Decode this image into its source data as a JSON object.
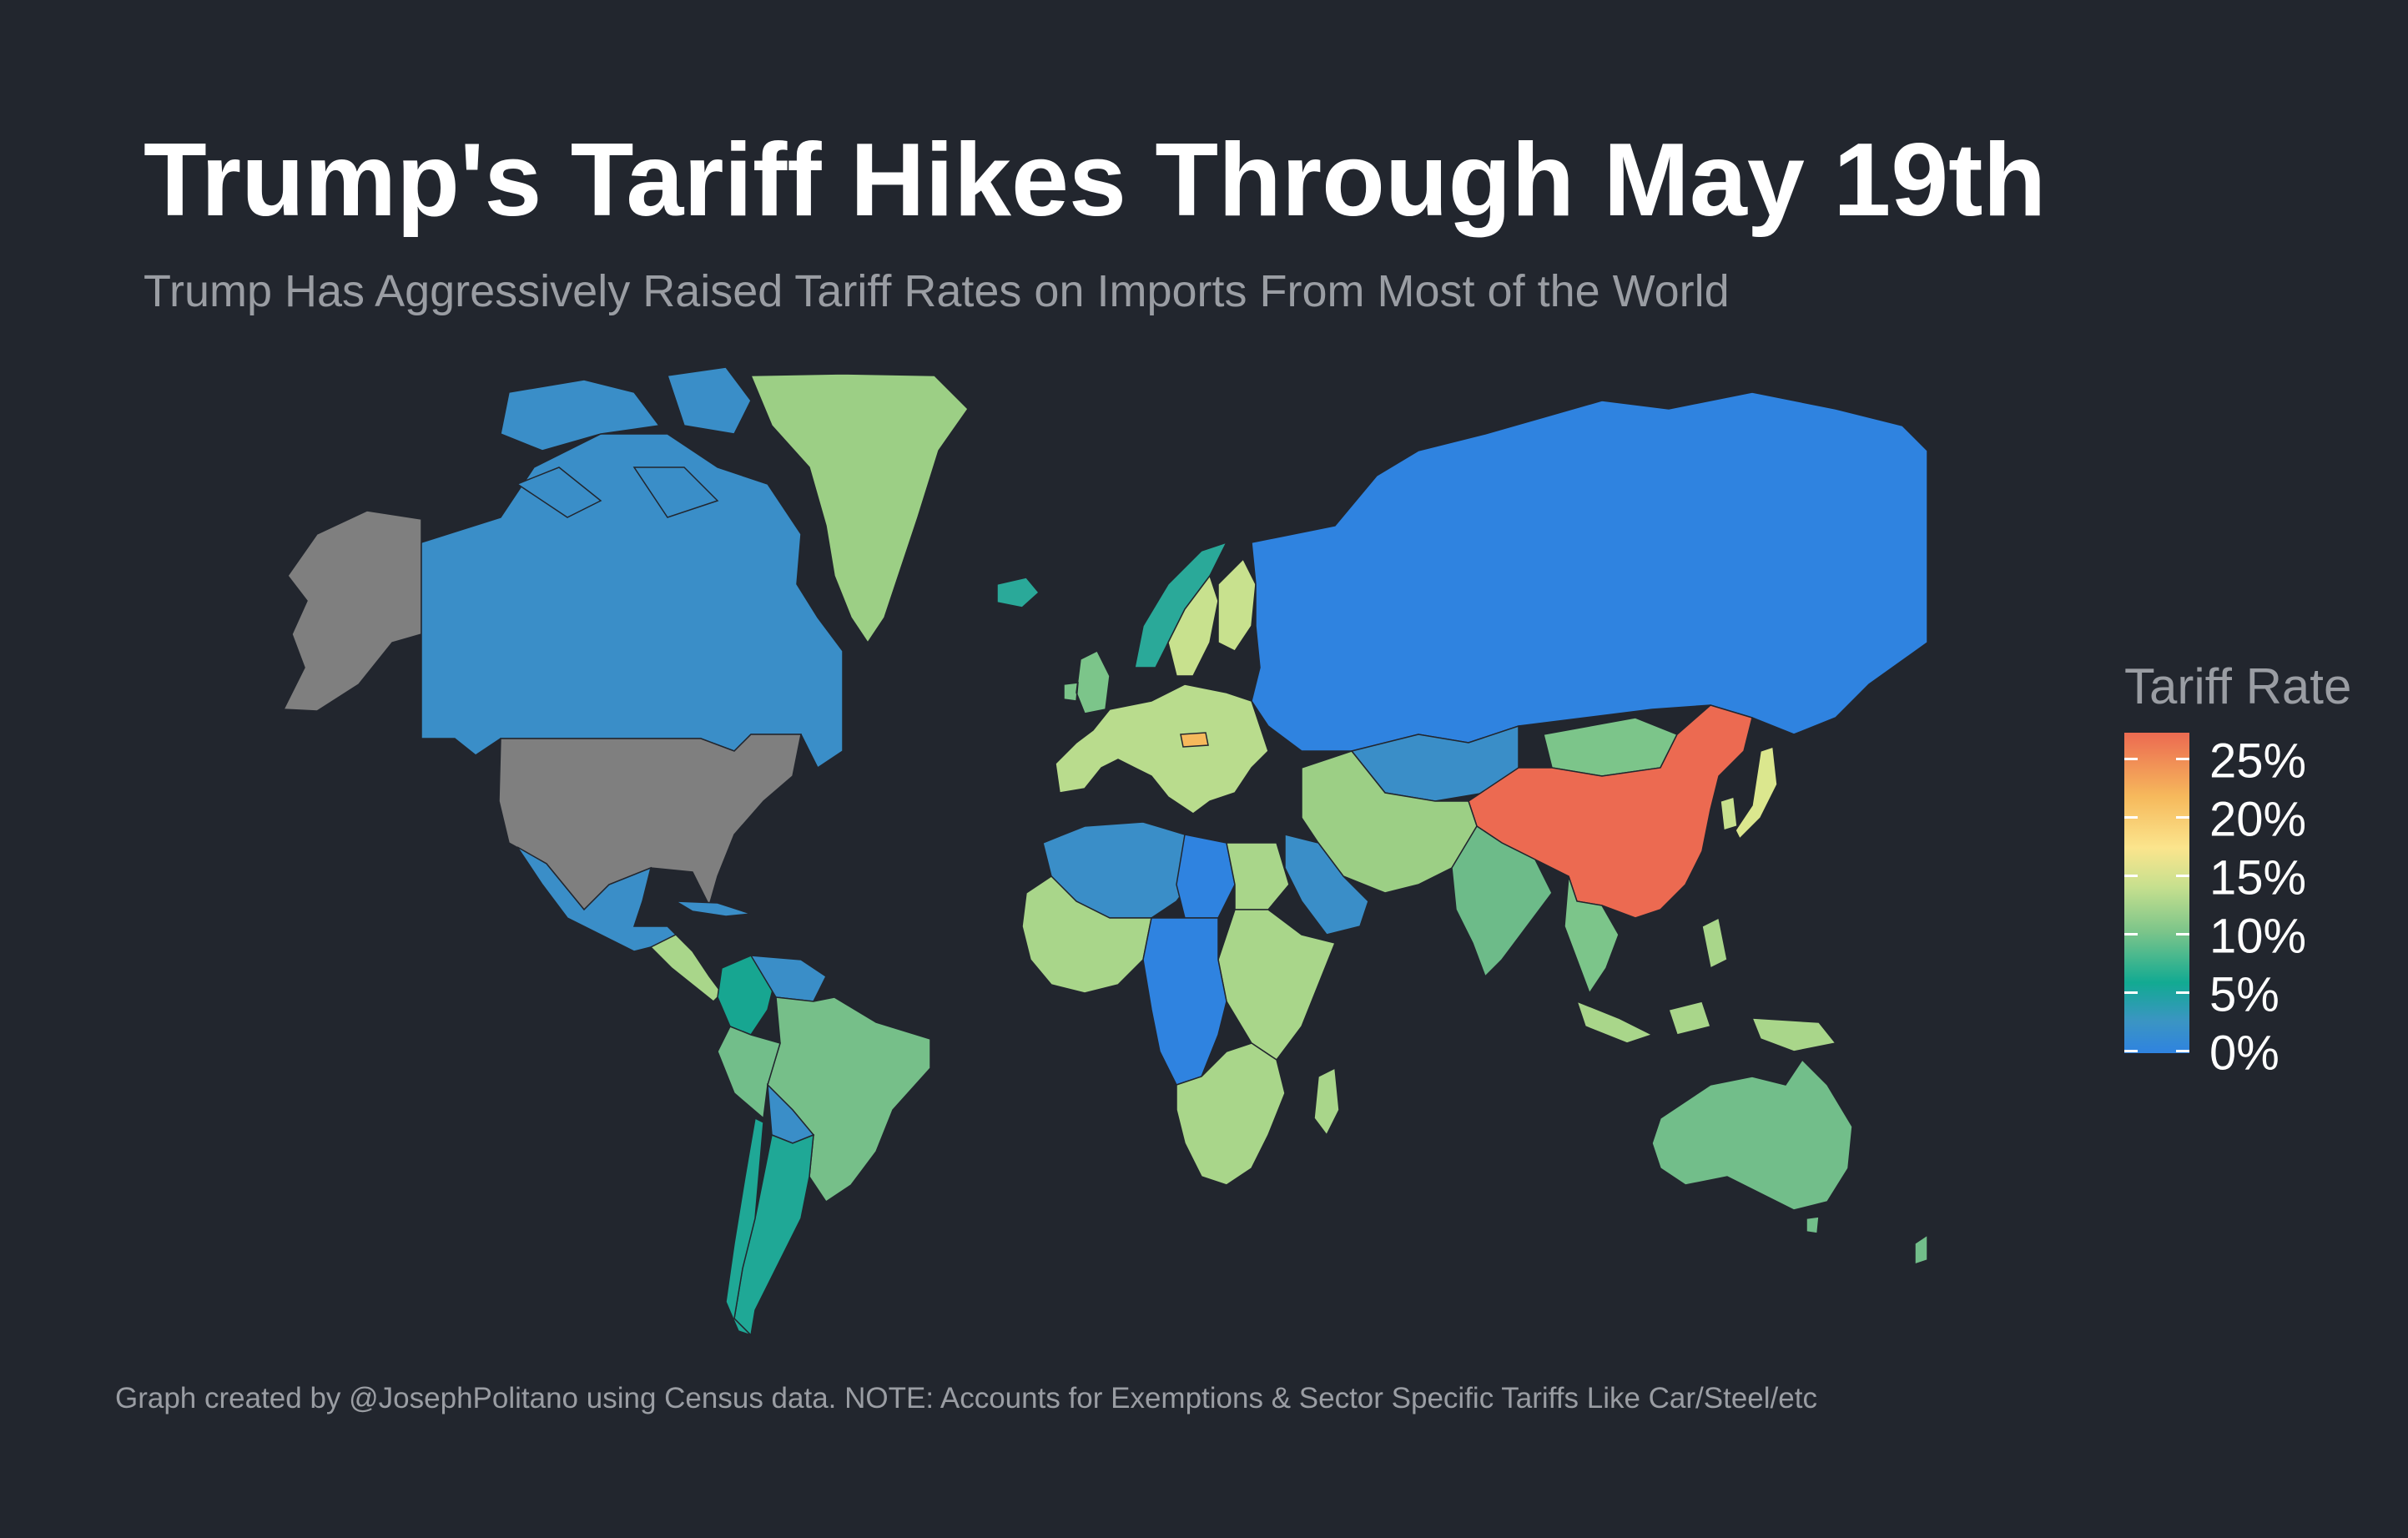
{
  "title": "Trump's Tariff Hikes Through May 19th",
  "subtitle": "Trump Has Aggressively Raised Tariff Rates on Imports From Most of the World",
  "footer": "Graph created by @JosephPolitano using Census data. NOTE: Accounts for Exemptions & Sector Specific Tariffs Like Car/Steel/etc",
  "legend": {
    "title": "Tariff Rate",
    "labels": [
      "25%",
      "20%",
      "15%",
      "10%",
      "5%",
      "0%"
    ]
  },
  "colors": {
    "background": "#22262e",
    "no_data": "#7f7f7f",
    "scale": [
      "#2f83e0",
      "#3b95c3",
      "#12aa92",
      "#7cc58a",
      "#c7e08e",
      "#fbe58d",
      "#f6b95c",
      "#ec6a51"
    ]
  },
  "regions": [
    {
      "name": "United States",
      "fill": "#7f7f7f"
    },
    {
      "name": "Alaska",
      "fill": "#7f7f7f"
    },
    {
      "name": "Canada",
      "fill": "#3a8ec8"
    },
    {
      "name": "Greenland",
      "fill": "#9ccf85"
    },
    {
      "name": "Mexico",
      "fill": "#3a8ec8"
    },
    {
      "name": "Central America",
      "fill": "#a9d68a"
    },
    {
      "name": "Cuba",
      "fill": "#3a8ec8"
    },
    {
      "name": "Colombia",
      "fill": "#17a691"
    },
    {
      "name": "Venezuela",
      "fill": "#3a8ec8"
    },
    {
      "name": "Brazil",
      "fill": "#76bf89"
    },
    {
      "name": "Peru",
      "fill": "#72be8a"
    },
    {
      "name": "Bolivia",
      "fill": "#3a8ec8"
    },
    {
      "name": "Argentina",
      "fill": "#1fa896"
    },
    {
      "name": "Chile",
      "fill": "#1fa896"
    },
    {
      "name": "Iceland",
      "fill": "#2aa999"
    },
    {
      "name": "Europe",
      "fill": "#b9dc8d"
    },
    {
      "name": "Norway",
      "fill": "#2aa999"
    },
    {
      "name": "Sweden",
      "fill": "#c8e18e"
    },
    {
      "name": "Finland",
      "fill": "#c8e18e"
    },
    {
      "name": "United Kingdom",
      "fill": "#7cc58a"
    },
    {
      "name": "Hungary",
      "fill": "#f6b95c"
    },
    {
      "name": "Russia",
      "fill": "#2f83e0"
    },
    {
      "name": "Kazakhstan",
      "fill": "#3a8ec8"
    },
    {
      "name": "Mongolia",
      "fill": "#7cc58a"
    },
    {
      "name": "China",
      "fill": "#ec6a51"
    },
    {
      "name": "Japan",
      "fill": "#dbe78e"
    },
    {
      "name": "South Korea",
      "fill": "#c8e18e"
    },
    {
      "name": "Middle East",
      "fill": "#9ccf85"
    },
    {
      "name": "Saudi Arabia",
      "fill": "#3a8ec8"
    },
    {
      "name": "India",
      "fill": "#6dbb89"
    },
    {
      "name": "Southeast Asia",
      "fill": "#7cc58a"
    },
    {
      "name": "Indonesia",
      "fill": "#a9d68a"
    },
    {
      "name": "North Africa",
      "fill": "#3a8ec8"
    },
    {
      "name": "Libya",
      "fill": "#2f83e0"
    },
    {
      "name": "Egypt",
      "fill": "#a9d68a"
    },
    {
      "name": "West Africa",
      "fill": "#a9d68a"
    },
    {
      "name": "Central Africa",
      "fill": "#2f83e0"
    },
    {
      "name": "East Africa",
      "fill": "#a9d68a"
    },
    {
      "name": "Southern Africa",
      "fill": "#a9d68a"
    },
    {
      "name": "Madagascar",
      "fill": "#a9d68a"
    },
    {
      "name": "Australia",
      "fill": "#72be8a"
    },
    {
      "name": "New Zealand",
      "fill": "#72be8a"
    }
  ]
}
